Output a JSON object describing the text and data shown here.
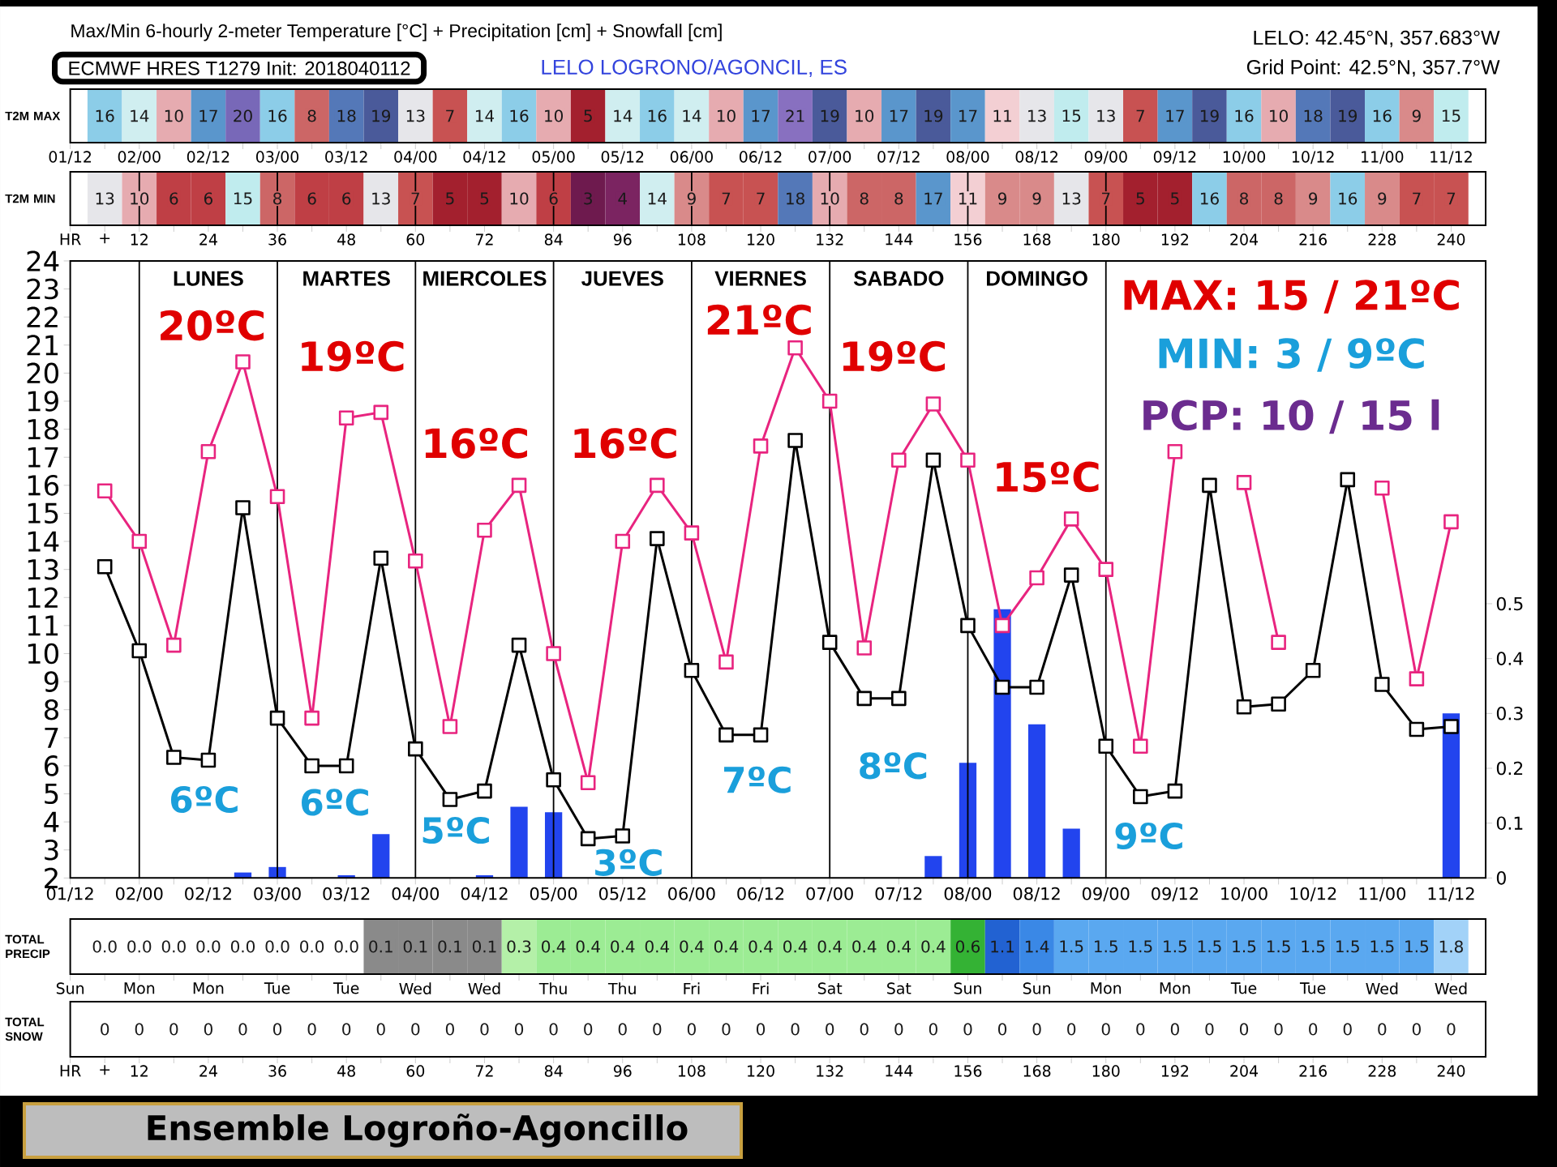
{
  "chart_data": [
    {
      "type": "heatmap",
      "title": "Max/Min 6-hourly 2-meter Temperature [°C] + Precipitation [cm] + Snowfall [cm]",
      "subtitle": "ECMWF HRES T1279 Init: 2018040112",
      "annotations": [
        "LELO LOGRONO/AGONCIL, ES",
        "LELO: 42.45°N, 357.683°W",
        "Grid Point: 42.5°N, 357.7°W"
      ],
      "y_categories": [
        "T2M MAX"
      ],
      "x": [
        "2018-04-01T18:00",
        "2018-04-02T00:00",
        "2018-04-02T06:00",
        "2018-04-02T12:00",
        "2018-04-02T18:00",
        "2018-04-03T00:00",
        "2018-04-03T06:00",
        "2018-04-03T12:00",
        "2018-04-03T18:00",
        "2018-04-04T00:00",
        "2018-04-04T06:00",
        "2018-04-04T12:00",
        "2018-04-04T18:00",
        "2018-04-05T00:00",
        "2018-04-05T06:00",
        "2018-04-05T12:00",
        "2018-04-05T18:00",
        "2018-04-06T00:00",
        "2018-04-06T06:00",
        "2018-04-06T12:00",
        "2018-04-06T18:00",
        "2018-04-07T00:00",
        "2018-04-07T06:00",
        "2018-04-07T12:00",
        "2018-04-07T18:00",
        "2018-04-08T00:00",
        "2018-04-08T06:00",
        "2018-04-08T12:00",
        "2018-04-08T18:00",
        "2018-04-09T00:00",
        "2018-04-09T06:00",
        "2018-04-09T12:00",
        "2018-04-09T18:00",
        "2018-04-10T00:00",
        "2018-04-10T06:00",
        "2018-04-10T12:00",
        "2018-04-10T18:00",
        "2018-04-11T00:00",
        "2018-04-11T06:00",
        "2018-04-11T12:00"
      ],
      "cells": [
        [
          16,
          14,
          10,
          17,
          20,
          16,
          8,
          18,
          19,
          13,
          7,
          14,
          16,
          10,
          5,
          14,
          16,
          14,
          10,
          17,
          21,
          19,
          10,
          17,
          19,
          17,
          11,
          13,
          15,
          13,
          7,
          17,
          19,
          16,
          10,
          18,
          19,
          16,
          9,
          15
        ]
      ],
      "data_labels": true,
      "xlim": [
        "2018-04-01T12:00",
        "2018-04-11T18:00"
      ],
      "xticks": [
        {
          "value": "2018-04-01T12:00",
          "label": "01/12"
        },
        {
          "value": "2018-04-01T18:00",
          "label": null
        },
        {
          "value": "2018-04-02T00:00",
          "label": "02/00"
        },
        {
          "value": "2018-04-02T06:00",
          "label": null
        },
        {
          "value": "2018-04-02T12:00",
          "label": "02/12"
        },
        {
          "value": "2018-04-02T18:00",
          "label": null
        },
        {
          "value": "2018-04-03T00:00",
          "label": "03/00"
        },
        {
          "value": "2018-04-03T06:00",
          "label": null
        },
        {
          "value": "2018-04-03T12:00",
          "label": "03/12"
        },
        {
          "value": "2018-04-03T18:00",
          "label": null
        },
        {
          "value": "2018-04-04T00:00",
          "label": "04/00"
        },
        {
          "value": "2018-04-04T06:00",
          "label": null
        },
        {
          "value": "2018-04-04T12:00",
          "label": "04/12"
        },
        {
          "value": "2018-04-04T18:00",
          "label": null
        },
        {
          "value": "2018-04-05T00:00",
          "label": "05/00"
        },
        {
          "value": "2018-04-05T06:00",
          "label": null
        },
        {
          "value": "2018-04-05T12:00",
          "label": "05/12"
        },
        {
          "value": "2018-04-05T18:00",
          "label": null
        },
        {
          "value": "2018-04-06T00:00",
          "label": "06/00"
        },
        {
          "value": "2018-04-06T06:00",
          "label": null
        },
        {
          "value": "2018-04-06T12:00",
          "label": "06/12"
        },
        {
          "value": "2018-04-06T18:00",
          "label": null
        },
        {
          "value": "2018-04-07T00:00",
          "label": "07/00"
        },
        {
          "value": "2018-04-07T06:00",
          "label": null
        },
        {
          "value": "2018-04-07T12:00",
          "label": "07/12"
        },
        {
          "value": "2018-04-07T18:00",
          "label": null
        },
        {
          "value": "2018-04-08T00:00",
          "label": "08/00"
        },
        {
          "value": "2018-04-08T06:00",
          "label": null
        },
        {
          "value": "2018-04-08T12:00",
          "label": "08/12"
        },
        {
          "value": "2018-04-08T18:00",
          "label": null
        },
        {
          "value": "2018-04-09T00:00",
          "label": "09/00"
        },
        {
          "value": "2018-04-09T06:00",
          "label": null
        },
        {
          "value": "2018-04-09T12:00",
          "label": "09/12"
        },
        {
          "value": "2018-04-09T18:00",
          "label": null
        },
        {
          "value": "2018-04-10T00:00",
          "label": "10/00"
        },
        {
          "value": "2018-04-10T06:00",
          "label": null
        },
        {
          "value": "2018-04-10T12:00",
          "label": "10/12"
        },
        {
          "value": "2018-04-10T18:00",
          "label": null
        },
        {
          "value": "2018-04-11T00:00",
          "label": "11/00"
        },
        {
          "value": "2018-04-11T06:00",
          "label": null
        },
        {
          "value": "2018-04-11T12:00",
          "label": "11/12"
        }
      ]
    },
    {
      "type": "heatmap",
      "y_categories": [
        "T2M MIN"
      ],
      "x": [
        6,
        12,
        18,
        24,
        30,
        36,
        42,
        48,
        54,
        60,
        66,
        72,
        78,
        84,
        90,
        96,
        102,
        108,
        114,
        120,
        126,
        132,
        138,
        144,
        150,
        156,
        162,
        168,
        174,
        180,
        186,
        192,
        198,
        204,
        210,
        216,
        222,
        228,
        234,
        240
      ],
      "cells": [
        [
          13,
          10,
          6,
          6,
          15,
          8,
          6,
          6,
          13,
          7,
          5,
          5,
          10,
          6,
          3,
          4,
          14,
          9,
          7,
          7,
          18,
          10,
          8,
          8,
          17,
          11,
          9,
          9,
          13,
          7,
          5,
          5,
          16,
          8,
          8,
          9,
          16,
          9,
          7,
          7
        ]
      ],
      "data_labels": true,
      "xlim": [
        0,
        246
      ],
      "xticks": [
        {
          "value": 0,
          "label": "HR"
        },
        {
          "value": 6,
          "label": "+"
        },
        12,
        {
          "value": 18,
          "label": null
        },
        24,
        {
          "value": 30,
          "label": null
        },
        36,
        {
          "value": 42,
          "label": null
        },
        48,
        {
          "value": 54,
          "label": null
        },
        60,
        {
          "value": 66,
          "label": null
        },
        72,
        {
          "value": 78,
          "label": null
        },
        84,
        {
          "value": 90,
          "label": null
        },
        96,
        {
          "value": 102,
          "label": null
        },
        108,
        {
          "value": 114,
          "label": null
        },
        120,
        {
          "value": 126,
          "label": null
        },
        132,
        {
          "value": 138,
          "label": null
        },
        144,
        {
          "value": 150,
          "label": null
        },
        156,
        {
          "value": 162,
          "label": null
        },
        168,
        {
          "value": 174,
          "label": null
        },
        180,
        {
          "value": 186,
          "label": null
        },
        192,
        {
          "value": 198,
          "label": null
        },
        204,
        {
          "value": 210,
          "label": null
        },
        216,
        {
          "value": 222,
          "label": null
        },
        228,
        {
          "value": 234,
          "label": null
        },
        240
      ],
      "ref_lines": [
        {
          "axis": "x",
          "value": 12
        },
        {
          "axis": "x",
          "value": 36
        },
        {
          "axis": "x",
          "value": 60
        },
        {
          "axis": "x",
          "value": 84
        },
        {
          "axis": "x",
          "value": 108
        },
        {
          "axis": "x",
          "value": 132
        },
        {
          "axis": "x",
          "value": 156
        },
        {
          "axis": "x",
          "value": 180
        }
      ]
    },
    {
      "type": "line",
      "x": [
        "2018-04-01T18:00",
        "2018-04-02T00:00",
        "2018-04-02T06:00",
        "2018-04-02T12:00",
        "2018-04-02T18:00",
        "2018-04-03T00:00",
        "2018-04-03T06:00",
        "2018-04-03T12:00",
        "2018-04-03T18:00",
        "2018-04-04T00:00",
        "2018-04-04T06:00",
        "2018-04-04T12:00",
        "2018-04-04T18:00",
        "2018-04-05T00:00",
        "2018-04-05T06:00",
        "2018-04-05T12:00",
        "2018-04-05T18:00",
        "2018-04-06T00:00",
        "2018-04-06T06:00",
        "2018-04-06T12:00",
        "2018-04-06T18:00",
        "2018-04-07T00:00",
        "2018-04-07T06:00",
        "2018-04-07T12:00",
        "2018-04-07T18:00",
        "2018-04-08T00:00",
        "2018-04-08T06:00",
        "2018-04-08T12:00",
        "2018-04-08T18:00",
        "2018-04-09T00:00",
        "2018-04-09T06:00",
        "2018-04-09T12:00",
        "2018-04-09T18:00",
        "2018-04-10T00:00",
        "2018-04-10T06:00",
        "2018-04-10T12:00",
        "2018-04-10T18:00",
        "2018-04-11T00:00",
        "2018-04-11T06:00",
        "2018-04-11T12:00"
      ],
      "xlim": [
        "2018-04-01T12:00",
        "2018-04-11T18:00"
      ],
      "ylim": [
        2,
        24
      ],
      "yticks": [
        2,
        3,
        4,
        5,
        6,
        7,
        8,
        9,
        10,
        11,
        12,
        13,
        14,
        15,
        16,
        17,
        18,
        19,
        20,
        21,
        22,
        23,
        24
      ],
      "y2lim": [
        0,
        1.125
      ],
      "y2ticks": [
        0,
        0.1,
        0.2,
        0.3,
        0.4,
        0.5
      ],
      "marker": "square",
      "xticks": [
        {
          "value": "2018-04-01T12:00",
          "label": "01/12"
        },
        {
          "value": "2018-04-01T18:00",
          "label": null
        },
        {
          "value": "2018-04-02T00:00",
          "label": "02/00"
        },
        {
          "value": "2018-04-02T06:00",
          "label": null
        },
        {
          "value": "2018-04-02T12:00",
          "label": "02/12"
        },
        {
          "value": "2018-04-02T18:00",
          "label": null
        },
        {
          "value": "2018-04-03T00:00",
          "label": "03/00"
        },
        {
          "value": "2018-04-03T06:00",
          "label": null
        },
        {
          "value": "2018-04-03T12:00",
          "label": "03/12"
        },
        {
          "value": "2018-04-03T18:00",
          "label": null
        },
        {
          "value": "2018-04-04T00:00",
          "label": "04/00"
        },
        {
          "value": "2018-04-04T06:00",
          "label": null
        },
        {
          "value": "2018-04-04T12:00",
          "label": "04/12"
        },
        {
          "value": "2018-04-04T18:00",
          "label": null
        },
        {
          "value": "2018-04-05T00:00",
          "label": "05/00"
        },
        {
          "value": "2018-04-05T06:00",
          "label": null
        },
        {
          "value": "2018-04-05T12:00",
          "label": "05/12"
        },
        {
          "value": "2018-04-05T18:00",
          "label": null
        },
        {
          "value": "2018-04-06T00:00",
          "label": "06/00"
        },
        {
          "value": "2018-04-06T06:00",
          "label": null
        },
        {
          "value": "2018-04-06T12:00",
          "label": "06/12"
        },
        {
          "value": "2018-04-06T18:00",
          "label": null
        },
        {
          "value": "2018-04-07T00:00",
          "label": "07/00"
        },
        {
          "value": "2018-04-07T06:00",
          "label": null
        },
        {
          "value": "2018-04-07T12:00",
          "label": "07/12"
        },
        {
          "value": "2018-04-07T18:00",
          "label": null
        },
        {
          "value": "2018-04-08T00:00",
          "label": "08/00"
        },
        {
          "value": "2018-04-08T06:00",
          "label": null
        },
        {
          "value": "2018-04-08T12:00",
          "label": "08/12"
        },
        {
          "value": "2018-04-08T18:00",
          "label": null
        },
        {
          "value": "2018-04-09T00:00",
          "label": "09/00"
        },
        {
          "value": "2018-04-09T06:00",
          "label": null
        },
        {
          "value": "2018-04-09T12:00",
          "label": "09/12"
        },
        {
          "value": "2018-04-09T18:00",
          "label": null
        },
        {
          "value": "2018-04-10T00:00",
          "label": "10/00"
        },
        {
          "value": "2018-04-10T06:00",
          "label": null
        },
        {
          "value": "2018-04-10T12:00",
          "label": "10/12"
        },
        {
          "value": "2018-04-10T18:00",
          "label": null
        },
        {
          "value": "2018-04-11T00:00",
          "label": "11/00"
        },
        {
          "value": "2018-04-11T06:00",
          "label": null
        },
        {
          "value": "2018-04-11T12:00",
          "label": "11/12"
        }
      ],
      "series": [
        {
          "color": "#E8247F",
          "values": [
            15.8,
            14.0,
            10.3,
            17.2,
            20.4,
            15.6,
            7.7,
            18.4,
            18.6,
            13.3,
            7.4,
            14.4,
            16.0,
            10.0,
            5.4,
            14.0,
            16.0,
            14.3,
            9.7,
            17.4,
            20.9,
            19.0,
            10.2,
            16.9,
            18.9,
            16.9,
            11.0,
            12.7,
            14.8,
            13.0,
            6.7,
            17.2,
            null,
            16.1,
            10.4,
            null,
            null,
            15.9,
            9.1,
            14.7
          ]
        },
        {
          "color": "#000000",
          "values": [
            13.1,
            10.1,
            6.3,
            6.2,
            15.2,
            7.7,
            6.0,
            6.0,
            13.4,
            6.6,
            4.8,
            5.1,
            10.3,
            5.5,
            3.4,
            3.5,
            14.1,
            9.4,
            7.1,
            7.1,
            17.6,
            10.4,
            8.4,
            8.4,
            16.9,
            11.0,
            8.8,
            8.8,
            12.8,
            6.7,
            4.9,
            5.1,
            16.0,
            8.1,
            8.2,
            9.4,
            16.2,
            8.9,
            7.3,
            7.4
          ]
        },
        {
          "type": "bar",
          "axis": "y2",
          "color": "#2244EE",
          "x": [
            "2018-04-02T18:00",
            "2018-04-03T00:00",
            "2018-04-03T12:00",
            "2018-04-03T18:00",
            "2018-04-04T12:00",
            "2018-04-04T18:00",
            "2018-04-05T00:00",
            "2018-04-07T18:00",
            "2018-04-08T00:00",
            "2018-04-08T06:00",
            "2018-04-08T12:00",
            "2018-04-08T18:00",
            "2018-04-11T12:00"
          ],
          "values": [
            0.01,
            0.02,
            0.005,
            0.08,
            0.005,
            0.13,
            0.12,
            0.04,
            0.21,
            0.49,
            0.28,
            0.09,
            0.3
          ]
        }
      ],
      "ref_lines": [
        {
          "axis": "x",
          "value": "2018-04-02T00:00"
        },
        {
          "axis": "x",
          "value": "2018-04-03T00:00"
        },
        {
          "axis": "x",
          "value": "2018-04-04T00:00"
        },
        {
          "axis": "x",
          "value": "2018-04-05T00:00"
        },
        {
          "axis": "x",
          "value": "2018-04-06T00:00"
        },
        {
          "axis": "x",
          "value": "2018-04-07T00:00"
        },
        {
          "axis": "x",
          "value": "2018-04-08T00:00"
        },
        {
          "axis": "x",
          "value": "2018-04-09T00:00"
        }
      ],
      "annotations": [
        "LUNES",
        "MARTES",
        "MIERCOLES",
        "JUEVES",
        "VIERNES",
        "SABADO",
        "DOMINGO",
        "MAX: 15 / 21ºC",
        "MIN: 3 / 9ºC",
        "PCP: 10 / 15 l",
        "20ºC",
        "19ºC",
        "16ºC",
        "16ºC",
        "21ºC",
        "19ºC",
        "15ºC",
        "6ºC",
        "6ºC",
        "5ºC",
        "3ºC",
        "7ºC",
        "8ºC",
        "9ºC"
      ]
    },
    {
      "type": "heatmap",
      "y_categories": [
        "TOTAL PRECIP"
      ],
      "categories": [
        "Sun",
        null,
        "Mon",
        null,
        "Mon",
        null,
        "Tue",
        null,
        "Tue",
        null,
        "Wed",
        null,
        "Wed",
        null,
        "Thu",
        null,
        "Thu",
        null,
        "Fri",
        null,
        "Fri",
        null,
        "Sat",
        null,
        "Sat",
        null,
        "Sun",
        null,
        "Sun",
        null,
        "Mon",
        null,
        "Mon",
        null,
        "Tue",
        null,
        "Tue",
        null,
        "Wed",
        null,
        "Wed"
      ],
      "cells": [
        [
          null,
          0,
          0,
          0,
          0,
          0,
          0,
          0,
          0,
          0.1,
          0.1,
          0.1,
          0.1,
          0.3,
          0.4,
          0.4,
          0.4,
          0.4,
          0.4,
          0.4,
          0.4,
          0.4,
          0.4,
          0.4,
          0.4,
          0.4,
          0.6,
          1.1,
          1.4,
          1.5,
          1.5,
          1.5,
          1.5,
          1.5,
          1.5,
          1.5,
          1.5,
          1.5,
          1.5,
          1.5,
          1.8
        ]
      ],
      "cell_labels": [
        [
          null,
          "0.0",
          "0.0",
          "0.0",
          "0.0",
          "0.0",
          "0.0",
          "0.0",
          "0.0",
          "0.1",
          "0.1",
          "0.1",
          "0.1",
          "0.3",
          "0.4",
          "0.4",
          "0.4",
          "0.4",
          "0.4",
          "0.4",
          "0.4",
          "0.4",
          "0.4",
          "0.4",
          "0.4",
          "0.4",
          "0.6",
          "1.1",
          "1.4",
          "1.5",
          "1.5",
          "1.5",
          "1.5",
          "1.5",
          "1.5",
          "1.5",
          "1.5",
          "1.5",
          "1.5",
          "1.5",
          "1.8"
        ]
      ]
    },
    {
      "type": "heatmap",
      "y_categories": [
        "TOTAL SNOW"
      ],
      "x": [
        6,
        12,
        18,
        24,
        30,
        36,
        42,
        48,
        54,
        60,
        66,
        72,
        78,
        84,
        90,
        96,
        102,
        108,
        114,
        120,
        126,
        132,
        138,
        144,
        150,
        156,
        162,
        168,
        174,
        180,
        186,
        192,
        198,
        204,
        210,
        216,
        222,
        228,
        234,
        240
      ],
      "cells": [
        [
          0,
          0,
          0,
          0,
          0,
          0,
          0,
          0,
          0,
          0,
          0,
          0,
          0,
          0,
          0,
          0,
          0,
          0,
          0,
          0,
          0,
          0,
          0,
          0,
          0,
          0,
          0,
          0,
          0,
          0,
          0,
          0,
          0,
          0,
          0,
          0,
          0,
          0,
          0,
          0
        ]
      ],
      "data_labels": true,
      "xlim": [
        0,
        246
      ],
      "xticks": [
        {
          "value": 0,
          "label": "HR"
        },
        {
          "value": 6,
          "label": "+"
        },
        12,
        {
          "value": 18,
          "label": null
        },
        24,
        {
          "value": 30,
          "label": null
        },
        36,
        {
          "value": 42,
          "label": null
        },
        48,
        {
          "value": 54,
          "label": null
        },
        60,
        {
          "value": 66,
          "label": null
        },
        72,
        {
          "value": 78,
          "label": null
        },
        84,
        {
          "value": 90,
          "label": null
        },
        96,
        {
          "value": 102,
          "label": null
        },
        108,
        {
          "value": 114,
          "label": null
        },
        120,
        {
          "value": 126,
          "label": null
        },
        132,
        {
          "value": 138,
          "label": null
        },
        144,
        {
          "value": 150,
          "label": null
        },
        156,
        {
          "value": 162,
          "label": null
        },
        168,
        {
          "value": 174,
          "label": null
        },
        180,
        {
          "value": 186,
          "label": null
        },
        192,
        {
          "value": 198,
          "label": null
        },
        204,
        {
          "value": 210,
          "label": null
        },
        216,
        {
          "value": 222,
          "label": null
        },
        228,
        {
          "value": 234,
          "label": null
        },
        240
      ],
      "annotations": [
        "Ensemble Logroño-Agoncillo"
      ]
    }
  ]
}
